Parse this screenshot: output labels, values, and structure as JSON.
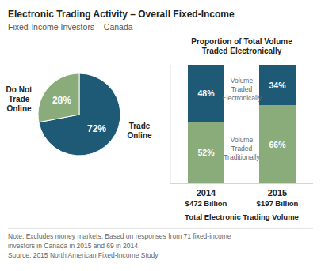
{
  "title": "Electronic Trading Activity – Overall Fixed-Income",
  "subtitle": "Fixed-Income Investors – Canada",
  "note": "Note: Excludes money markets. Based on responses from 71 fixed-income\ninvestors in Canada in 2015 and 69 in 2014.\nSource: 2015 North American Fixed-Income Study",
  "chart_data": [
    {
      "type": "pie",
      "categories": [
        "Trade\nOnline",
        "Do Not\nTrade\nOnline"
      ],
      "values": [
        72,
        28
      ],
      "value_labels": [
        "72%",
        "28%"
      ],
      "colors": [
        "#1e5a75",
        "#8aab7a"
      ],
      "data_labels": true
    },
    {
      "type": "bar",
      "title": "Proportion of Total Volume\nTraded Electronically",
      "stacked": true,
      "categories": [
        "2014",
        "2015"
      ],
      "volume_labels": [
        "$472 Billion",
        "$197 Billion"
      ],
      "xlabel": "Total Electronic Trading Volume",
      "series": [
        {
          "name": "Volume\nTraded\nTraditionally",
          "color": "#8aab7a",
          "values": [
            52,
            66
          ],
          "value_labels": [
            "52%",
            "66%"
          ]
        },
        {
          "name": "Volume\nTraded\nElectronically",
          "color": "#1e5a75",
          "values": [
            48,
            34
          ],
          "value_labels": [
            "48%",
            "34%"
          ]
        }
      ],
      "ylim": [
        0,
        100
      ],
      "tick_labels": false,
      "data_labels": true
    }
  ]
}
